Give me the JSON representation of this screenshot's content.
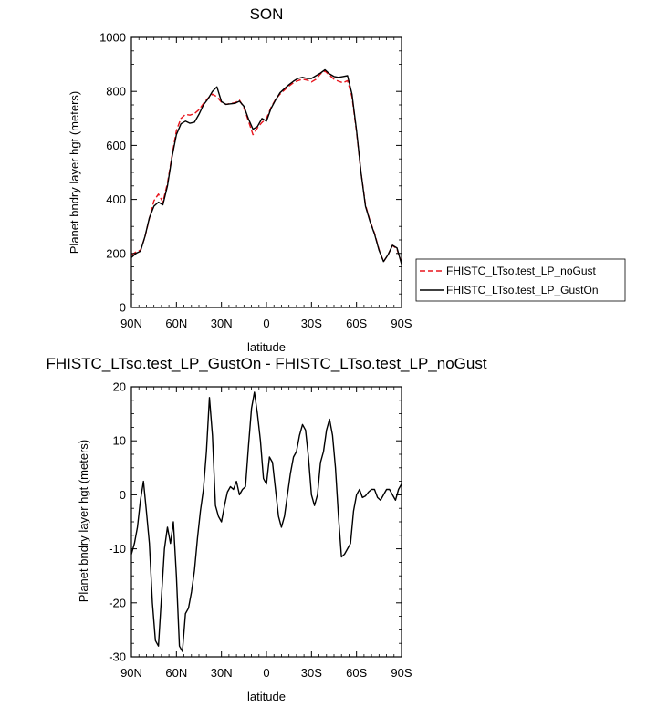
{
  "chart_data": [
    {
      "type": "line",
      "title": "SON",
      "xlabel": "latitude",
      "ylabel": "Planet bndry layer hgt (meters)",
      "xlim": [
        90,
        -90
      ],
      "ylim": [
        0,
        1000
      ],
      "x_tick_values": [
        90,
        60,
        30,
        0,
        -30,
        -60,
        -90
      ],
      "x_tick_labels": [
        "90N",
        "60N",
        "30N",
        "0",
        "30S",
        "60S",
        "90S"
      ],
      "y_tick_values": [
        0,
        200,
        400,
        600,
        800,
        1000
      ],
      "y_tick_labels": [
        "0",
        "200",
        "400",
        "600",
        "800",
        "1000"
      ],
      "legend_position": "right-bottom, outside",
      "series": [
        {
          "name": "FHISTC_LTso.test_LP_noGust",
          "color": "#e8141c",
          "dash": "dashed",
          "x": [
            90,
            87,
            84,
            81,
            78,
            75,
            72,
            69,
            66,
            63,
            60,
            57,
            54,
            51,
            48,
            45,
            42,
            39,
            36,
            33,
            30,
            27,
            24,
            21,
            18,
            15,
            12,
            9,
            6,
            3,
            0,
            -3,
            -6,
            -9,
            -12,
            -15,
            -18,
            -21,
            -24,
            -27,
            -30,
            -33,
            -36,
            -39,
            -42,
            -45,
            -48,
            -51,
            -54,
            -57,
            -60,
            -63,
            -66,
            -69,
            -72,
            -75,
            -78,
            -81,
            -84,
            -87,
            -90
          ],
          "y": [
            195,
            205,
            212,
            260,
            330,
            395,
            420,
            390,
            460,
            560,
            655,
            700,
            715,
            712,
            718,
            732,
            755,
            775,
            790,
            780,
            760,
            752,
            755,
            758,
            768,
            740,
            690,
            640,
            665,
            685,
            700,
            740,
            770,
            790,
            805,
            820,
            832,
            840,
            845,
            842,
            835,
            845,
            865,
            875,
            860,
            845,
            838,
            832,
            840,
            780,
            650,
            500,
            380,
            320,
            275,
            215,
            170,
            195,
            230,
            215,
            165
          ]
        },
        {
          "name": "FHISTC_LTso.test_LP_GustOn",
          "color": "#000000",
          "dash": "solid",
          "x": [
            90,
            87,
            84,
            81,
            78,
            75,
            72,
            69,
            66,
            63,
            60,
            57,
            54,
            51,
            48,
            45,
            42,
            39,
            36,
            33,
            30,
            27,
            24,
            21,
            18,
            15,
            12,
            9,
            6,
            3,
            0,
            -3,
            -6,
            -9,
            -12,
            -15,
            -18,
            -21,
            -24,
            -27,
            -30,
            -33,
            -36,
            -39,
            -42,
            -45,
            -48,
            -51,
            -54,
            -57,
            -60,
            -63,
            -66,
            -69,
            -72,
            -75,
            -78,
            -81,
            -84,
            -87,
            -90
          ],
          "y": [
            185,
            200,
            208,
            262,
            332,
            375,
            390,
            380,
            450,
            555,
            640,
            680,
            690,
            682,
            686,
            715,
            750,
            772,
            800,
            817,
            762,
            752,
            754,
            756,
            764,
            745,
            698,
            660,
            670,
            700,
            690,
            736,
            768,
            795,
            810,
            825,
            838,
            848,
            852,
            848,
            848,
            858,
            868,
            880,
            865,
            855,
            852,
            855,
            858,
            790,
            655,
            500,
            375,
            318,
            272,
            212,
            170,
            195,
            230,
            220,
            160
          ]
        }
      ]
    },
    {
      "type": "line",
      "title": "FHISTC_LTso.test_LP_GustOn - FHISTC_LTso.test_LP_noGust",
      "xlabel": "latitude",
      "ylabel": "Planet bndry layer hgt (meters)",
      "xlim": [
        90,
        -90
      ],
      "ylim": [
        -30,
        20
      ],
      "x_tick_values": [
        90,
        60,
        30,
        0,
        -30,
        -60,
        -90
      ],
      "x_tick_labels": [
        "90N",
        "60N",
        "30N",
        "0",
        "30S",
        "60S",
        "90S"
      ],
      "y_tick_values": [
        -30,
        -20,
        -10,
        0,
        10,
        20
      ],
      "y_tick_labels": [
        "-30",
        "-20",
        "-10",
        "0",
        "10",
        "20"
      ],
      "series": [
        {
          "color": "#000000",
          "dash": "solid",
          "x": [
            90,
            88,
            86,
            84,
            82,
            80,
            78,
            76,
            74,
            72,
            70,
            68,
            66,
            64,
            62,
            60,
            58,
            56,
            54,
            52,
            50,
            48,
            46,
            44,
            42,
            40,
            38,
            36,
            34,
            32,
            30,
            28,
            26,
            24,
            22,
            20,
            18,
            16,
            14,
            12,
            10,
            8,
            6,
            4,
            2,
            0,
            -2,
            -4,
            -6,
            -8,
            -10,
            -12,
            -14,
            -16,
            -18,
            -20,
            -22,
            -24,
            -26,
            -28,
            -30,
            -32,
            -34,
            -36,
            -38,
            -40,
            -42,
            -44,
            -46,
            -48,
            -50,
            -52,
            -54,
            -56,
            -58,
            -60,
            -62,
            -64,
            -66,
            -68,
            -70,
            -72,
            -74,
            -76,
            -78,
            -80,
            -82,
            -84,
            -86,
            -88,
            -90
          ],
          "y": [
            -11,
            -9,
            -6,
            -1,
            2.5,
            -3,
            -9,
            -20,
            -27,
            -28,
            -19,
            -10,
            -6,
            -9,
            -5,
            -15,
            -28,
            -29,
            -22,
            -21,
            -18,
            -14,
            -8,
            -3,
            1,
            8,
            18,
            11,
            -2,
            -4,
            -5,
            -2,
            0.5,
            1.5,
            1,
            2.5,
            0,
            1,
            1.5,
            9,
            16,
            19,
            15,
            10,
            3,
            2,
            7,
            6,
            1,
            -4,
            -6,
            -4,
            0,
            4,
            7,
            8,
            11,
            13,
            12,
            7,
            0,
            -2,
            0,
            6,
            8,
            12,
            14,
            11,
            5,
            -4,
            -11.5,
            -11,
            -10,
            -9,
            -3,
            0,
            1,
            -0.5,
            -0.2,
            0.5,
            1,
            1,
            -0.5,
            -1,
            0,
            1,
            1,
            0,
            -1,
            1,
            2
          ]
        }
      ]
    }
  ]
}
